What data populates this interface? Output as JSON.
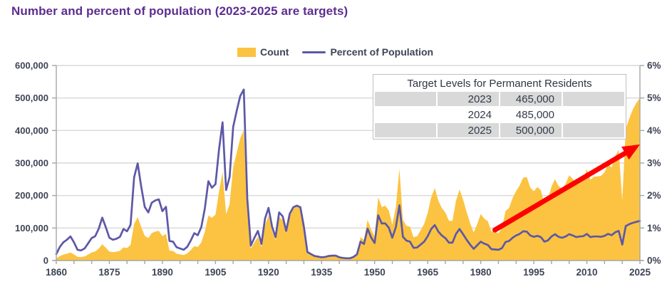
{
  "title": "Number and percent of population (2023-2025 are targets)",
  "legend": {
    "count_label": "Count",
    "percent_label": "Percent of Population"
  },
  "overlay_table": {
    "header": "Target Levels for Permanent Residents",
    "rows": [
      {
        "year": "2023",
        "value": "465,000"
      },
      {
        "year": "2024",
        "value": "485,000"
      },
      {
        "year": "2025",
        "value": "500,000"
      }
    ]
  },
  "colors": {
    "title": "#5C2D91",
    "text": "#3E4455",
    "area": "#FBC341",
    "line": "#5D58A6",
    "grid": "#D9D9D9",
    "axis": "#A6A6A6",
    "arrow": "#FE0000",
    "table_band": "#D9D9D9",
    "table_border": "#BFBFBF"
  },
  "chart_data": {
    "type": "area",
    "title": "Number and percent of population (2023-2025 are targets)",
    "x_start_year": 1860,
    "x_end_year": 2025,
    "x_tick_labels": [
      "1860",
      "1875",
      "1890",
      "1905",
      "1920",
      "1935",
      "1950",
      "1965",
      "1980",
      "1995",
      "2010",
      "2025"
    ],
    "minor_tick_step_years": 5,
    "left_axis": {
      "min": 0,
      "max": 600000,
      "tick_step": 100000,
      "tick_labels": [
        "0",
        "100,000",
        "200,000",
        "300,000",
        "400,000",
        "500,000",
        "600,000"
      ]
    },
    "right_axis": {
      "min": 0,
      "max": 6,
      "tick_step": 1,
      "tick_labels": [
        "0%",
        "1%",
        "2%",
        "3%",
        "4%",
        "5%",
        "6%"
      ]
    },
    "grid": "horizontal-only",
    "legend_position": "top-center",
    "series": [
      {
        "name": "Count",
        "type": "area",
        "axis": "left",
        "values": [
          6300,
          13600,
          18300,
          21000,
          24800,
          18900,
          11400,
          10700,
          12800,
          18600,
          24700,
          27800,
          36600,
          50100,
          39400,
          27400,
          25600,
          27100,
          29800,
          40500,
          38500,
          47900,
          112500,
          133600,
          103800,
          76200,
          69200,
          84500,
          88800,
          91600,
          75100,
          82200,
          30000,
          29600,
          20800,
          19000,
          16800,
          21700,
          31900,
          44500,
          41700,
          55700,
          89100,
          138700,
          131300,
          141500,
          211700,
          272400,
          143300,
          173700,
          286800,
          331300,
          375800,
          400900,
          150500,
          36700,
          55900,
          72900,
          41800,
          107700,
          138800,
          91700,
          64200,
          133700,
          124200,
          84900,
          136000,
          158900,
          166800,
          165000,
          104800,
          27500,
          20600,
          14400,
          12500,
          11300,
          11600,
          15100,
          17200,
          17000,
          11300,
          9300,
          7600,
          8500,
          12800,
          22700,
          71700,
          64100,
          125400,
          95200,
          73900,
          194400,
          164500,
          168900,
          154200,
          109900,
          164900,
          282200,
          124900,
          106900,
          104100,
          71700,
          74600,
          93200,
          112600,
          146800,
          194700,
          222900,
          183900,
          161500,
          147700,
          121900,
          122000,
          184200,
          218500,
          187900,
          149400,
          114900,
          86300,
          112100,
          143100,
          128600,
          121200,
          89200,
          88300,
          84300,
          99400,
          152100,
          161900,
          192000,
          214200,
          230800,
          254800,
          256600,
          224400,
          212900,
          226100,
          216000,
          174200,
          190000,
          227500,
          250600,
          229000,
          221400,
          235800,
          262200,
          251600,
          236800,
          247200,
          252200,
          280700,
          248700,
          257900,
          259000,
          260400,
          271800,
          296400,
          286500,
          321000,
          341200,
          184600,
          406000,
          437600,
          465000,
          485000,
          500000
        ]
      },
      {
        "name": "Percent of Population",
        "type": "line",
        "axis": "right",
        "values": [
          0.2,
          0.42,
          0.56,
          0.64,
          0.74,
          0.56,
          0.33,
          0.31,
          0.37,
          0.53,
          0.69,
          0.75,
          0.98,
          1.32,
          1.02,
          0.7,
          0.64,
          0.67,
          0.73,
          0.97,
          0.9,
          1.1,
          2.56,
          2.99,
          2.28,
          1.65,
          1.48,
          1.78,
          1.85,
          1.88,
          1.52,
          1.65,
          0.6,
          0.58,
          0.41,
          0.37,
          0.33,
          0.42,
          0.61,
          0.84,
          0.78,
          1.03,
          1.61,
          2.44,
          2.24,
          2.35,
          3.41,
          4.25,
          2.17,
          2.57,
          4.11,
          4.6,
          5.06,
          5.26,
          1.91,
          0.46,
          0.7,
          0.91,
          0.51,
          1.29,
          1.62,
          1.04,
          0.72,
          1.48,
          1.36,
          0.91,
          1.44,
          1.64,
          1.69,
          1.64,
          1.03,
          0.26,
          0.2,
          0.14,
          0.12,
          0.1,
          0.11,
          0.14,
          0.15,
          0.15,
          0.1,
          0.08,
          0.07,
          0.07,
          0.11,
          0.19,
          0.58,
          0.51,
          0.98,
          0.71,
          0.54,
          1.39,
          1.14,
          1.14,
          1.01,
          0.7,
          1.03,
          1.7,
          0.73,
          0.61,
          0.58,
          0.39,
          0.4,
          0.49,
          0.58,
          0.75,
          0.97,
          1.09,
          0.89,
          0.77,
          0.69,
          0.55,
          0.55,
          0.82,
          0.97,
          0.81,
          0.64,
          0.49,
          0.36,
          0.47,
          0.58,
          0.52,
          0.48,
          0.35,
          0.34,
          0.33,
          0.38,
          0.57,
          0.6,
          0.7,
          0.77,
          0.82,
          0.9,
          0.89,
          0.77,
          0.73,
          0.76,
          0.72,
          0.58,
          0.62,
          0.74,
          0.81,
          0.73,
          0.7,
          0.74,
          0.81,
          0.77,
          0.72,
          0.74,
          0.75,
          0.82,
          0.72,
          0.74,
          0.74,
          0.73,
          0.76,
          0.82,
          0.78,
          0.87,
          0.91,
          0.49,
          1.06,
          1.12,
          1.16,
          1.19,
          1.22
        ]
      }
    ],
    "annotation_arrow": {
      "from_year": 1984,
      "from_pct": 0.94,
      "to_year": 2025,
      "to_pct": 3.57
    }
  }
}
